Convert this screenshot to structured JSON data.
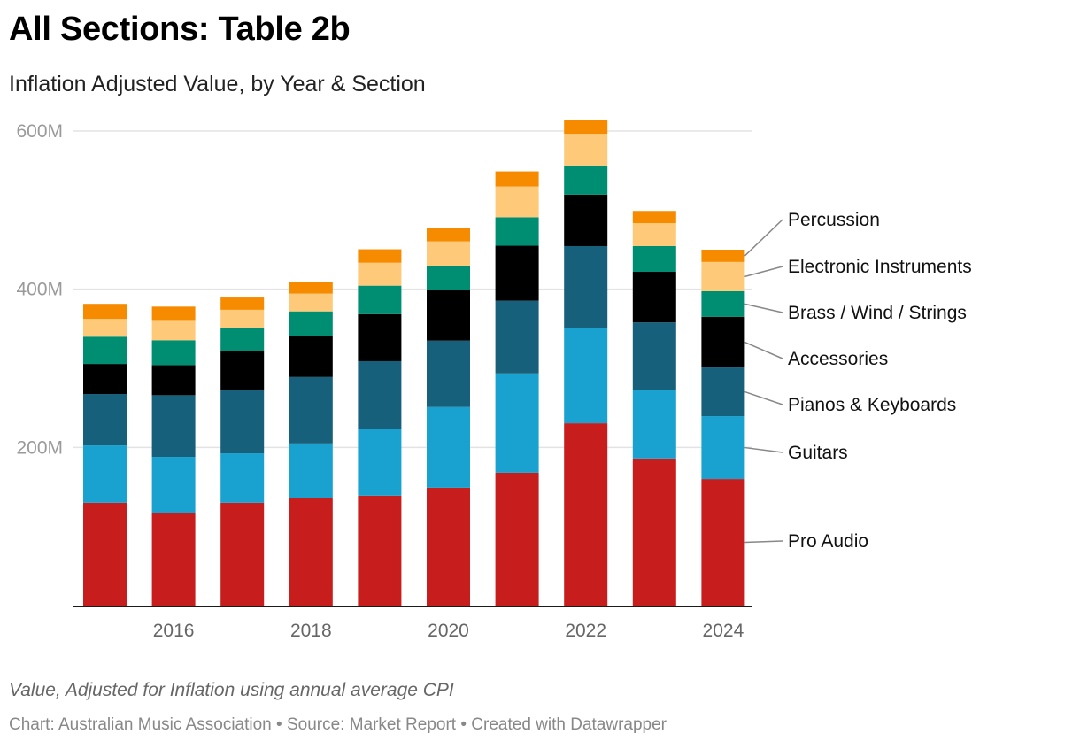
{
  "header": {
    "title": "All Sections: Table 2b",
    "subtitle": "Inflation Adjusted Value, by Year & Section"
  },
  "footer": {
    "notes": "Value, Adjusted for Inflation using annual average CPI",
    "byline": "Chart: Australian Music Association • Source: Market Report • Created with Datawrapper"
  },
  "chart_data": {
    "type": "bar",
    "stacked": true,
    "title": "All Sections: Table 2b",
    "subtitle": "Inflation Adjusted Value, by Year & Section",
    "xlabel": "",
    "ylabel": "",
    "unit": "M",
    "categories": [
      "2015",
      "2016",
      "2017",
      "2018",
      "2019",
      "2020",
      "2021",
      "2022",
      "2023",
      "2024"
    ],
    "x_tick_labels": [
      "2016",
      "2018",
      "2020",
      "2022",
      "2024"
    ],
    "y_ticks": [
      {
        "value": 200,
        "label": "200M"
      },
      {
        "value": 400,
        "label": "400M"
      },
      {
        "value": 600,
        "label": "600M"
      }
    ],
    "ylim": [
      0,
      600
    ],
    "grid": true,
    "legend": "direct labels right of last bar",
    "series": [
      {
        "name": "Pro Audio",
        "color": "#c71e1d",
        "values": [
          130,
          117.5,
          130,
          135.5,
          139,
          149,
          168,
          230.5,
          186,
          160
        ]
      },
      {
        "name": "Guitars",
        "color": "#19a2cf",
        "values": [
          72.5,
          70.5,
          62.5,
          69.5,
          84,
          102,
          125.5,
          121,
          86,
          79.5
        ]
      },
      {
        "name": "Pianos & Keyboards",
        "color": "#17607b",
        "values": [
          65,
          78,
          79.5,
          84,
          86,
          84,
          92,
          103,
          86,
          61.5
        ]
      },
      {
        "name": "Accessories",
        "color": "#000000",
        "values": [
          38,
          38,
          49.5,
          51.5,
          59.5,
          64,
          69.5,
          65,
          64,
          64
        ]
      },
      {
        "name": "Brass / Wind / Strings",
        "color": "#008e72",
        "values": [
          34.5,
          31.5,
          30,
          31.5,
          36,
          30,
          36,
          37,
          32.5,
          32.5
        ]
      },
      {
        "name": "Electronic Instruments",
        "color": "#fec979",
        "values": [
          22.5,
          24.5,
          22.5,
          22.5,
          29,
          31.5,
          39,
          40,
          29,
          37
        ]
      },
      {
        "name": "Percussion",
        "color": "#f78b00",
        "values": [
          19,
          18,
          15.5,
          14.5,
          17,
          17,
          19,
          18,
          15.5,
          15.5
        ]
      }
    ]
  }
}
